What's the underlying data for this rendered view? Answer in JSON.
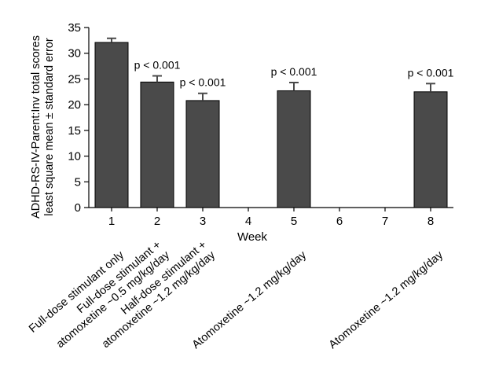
{
  "chart_data": {
    "type": "bar",
    "categories": [
      "1",
      "2",
      "3",
      "4",
      "5",
      "6",
      "7",
      "8"
    ],
    "series": [
      {
        "values": [
          32.1,
          24.4,
          20.8,
          null,
          22.7,
          null,
          null,
          22.5
        ],
        "errors": [
          0.8,
          1.2,
          1.4,
          null,
          1.6,
          null,
          null,
          1.6
        ]
      }
    ],
    "annotations": [
      "",
      "p < 0.001",
      "p < 0.001",
      "",
      "p < 0.001",
      "",
      "",
      "p < 0.001"
    ],
    "xlabel": "Week",
    "ylabel_lines": [
      "ADHD-RS-IV-Parent:Inv total scores",
      "least square mean ± standard error"
    ],
    "ylim": [
      0,
      35
    ],
    "yticks": [
      0,
      5,
      10,
      15,
      20,
      25,
      30,
      35
    ],
    "treatment_labels": [
      {
        "week": "1",
        "lines": [
          "Full-dose stimulant only"
        ]
      },
      {
        "week": "2",
        "lines": [
          "Full-dose stimulant +",
          "atomoxetine ~0.5 mg/kg/day"
        ]
      },
      {
        "week": "3",
        "lines": [
          "Half-dose stimulant +",
          "atomoxetine ~1.2 mg/kg/day"
        ]
      },
      {
        "week": "5",
        "lines": [
          "Atomoxetine ~1.2 mg/kg/day"
        ]
      },
      {
        "week": "8",
        "lines": [
          "Atomoxetine ~1.2 mg/kg/day"
        ]
      }
    ],
    "bar_color": "#4a4a4a",
    "grid": false
  }
}
